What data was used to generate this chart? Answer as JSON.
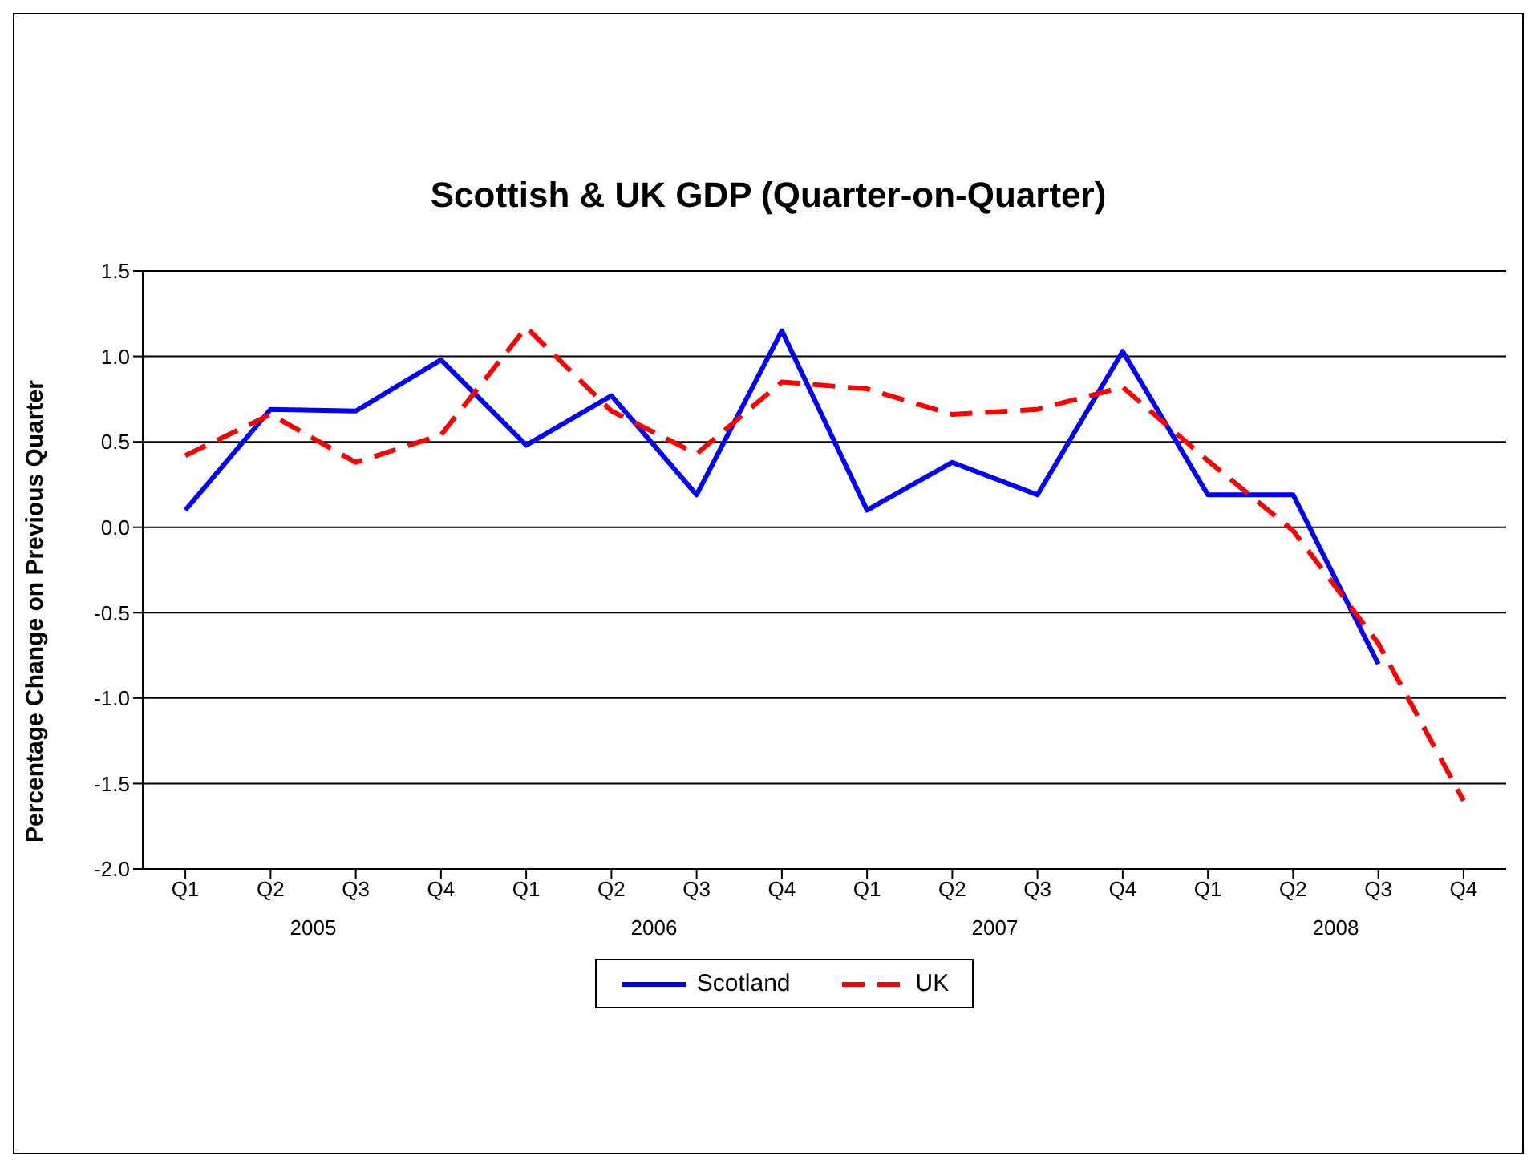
{
  "chart_data": {
    "type": "line",
    "title": "Scottish & UK GDP (Quarter-on-Quarter)",
    "ylabel": "Percentage Change on Previous Quarter",
    "categories": [
      "Q1",
      "Q2",
      "Q3",
      "Q4",
      "Q1",
      "Q2",
      "Q3",
      "Q4",
      "Q1",
      "Q2",
      "Q3",
      "Q4",
      "Q1",
      "Q2",
      "Q3",
      "Q4"
    ],
    "annotations": [
      "2005",
      "2006",
      "2007",
      "2008"
    ],
    "series": [
      {
        "name": "Scotland",
        "color": "#0000ff",
        "line_style": "solid",
        "values": [
          0.1,
          0.69,
          0.68,
          0.98,
          0.48,
          0.77,
          0.19,
          1.15,
          0.1,
          0.38,
          0.19,
          1.03,
          0.19,
          0.19,
          -0.8,
          null
        ]
      },
      {
        "name": "UK",
        "color": "#ff0000",
        "line_style": "dashed",
        "values": [
          0.42,
          0.66,
          0.38,
          0.54,
          1.17,
          0.68,
          0.43,
          0.85,
          0.81,
          0.66,
          0.69,
          0.82,
          0.39,
          -0.02,
          -0.68,
          -1.6
        ]
      }
    ],
    "ylim": [
      -2,
      1.5
    ],
    "yticks": [
      {
        "value": -2,
        "label": "-2.0"
      },
      -1.5,
      {
        "value": -1,
        "label": "-1.0"
      },
      -0.5,
      {
        "value": 0,
        "label": "0.0"
      },
      0.5,
      {
        "value": 1,
        "label": "1.0"
      },
      1.5
    ],
    "grid": "y",
    "legend": "bottom",
    "marker": "none"
  }
}
